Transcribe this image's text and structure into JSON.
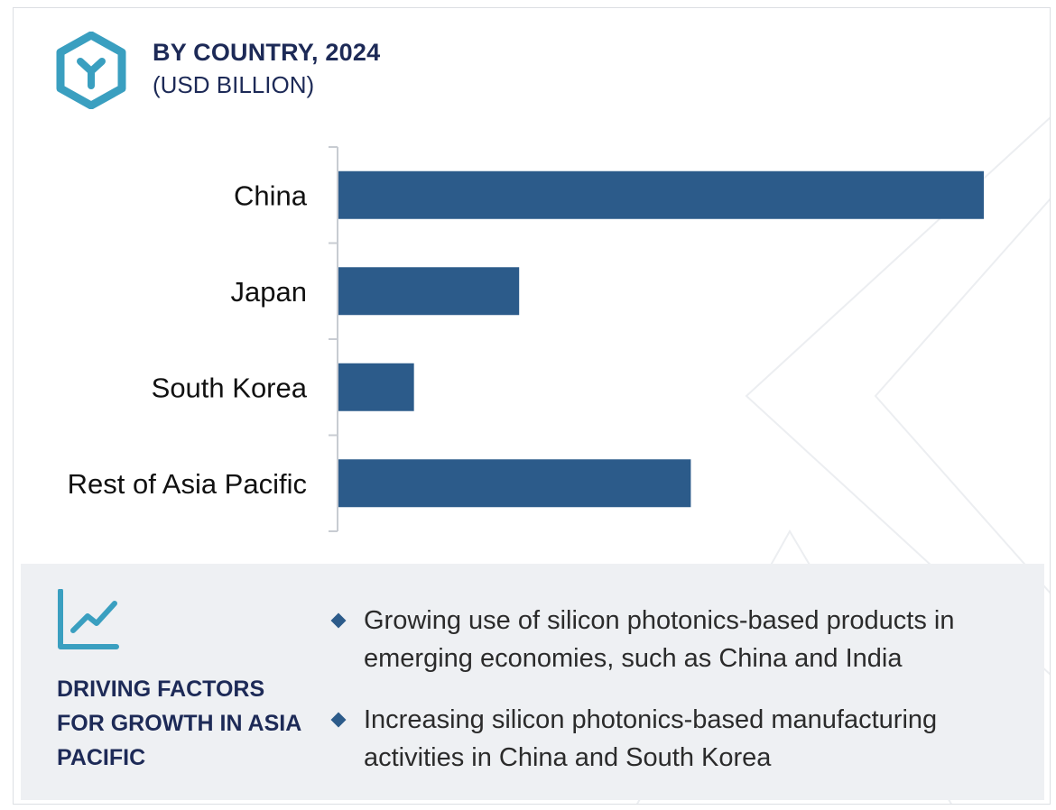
{
  "header": {
    "title": "BY COUNTRY, 2024",
    "subtitle": "(USD BILLION)",
    "logo_icon": "hexagon-y-logo-icon"
  },
  "chart_data": {
    "type": "bar",
    "orientation": "horizontal",
    "categories": [
      "China",
      "Japan",
      "South Korea",
      "Rest of Asia Pacific"
    ],
    "values": [
      100,
      28,
      11.7,
      54.6
    ],
    "xlim": [
      0,
      100
    ],
    "axis_values_shown": false,
    "grid": false,
    "title": "BY COUNTRY, 2024",
    "subtitle": "(USD BILLION)",
    "bar_color": "#2c5b8a"
  },
  "drivers": {
    "icon": "trend-chart-icon",
    "title": "DRIVING FACTORS FOR GROWTH IN ASIA PACIFIC",
    "items": [
      "Growing use of silicon photonics-based products in emerging economies, such as China and India",
      "Increasing silicon photonics-based manufacturing activities in China and South Korea"
    ]
  },
  "colors": {
    "accent": "#3a9fc0",
    "navy": "#1d2a57",
    "bar": "#2c5b8a",
    "panel_bg": "#eef0f3"
  }
}
